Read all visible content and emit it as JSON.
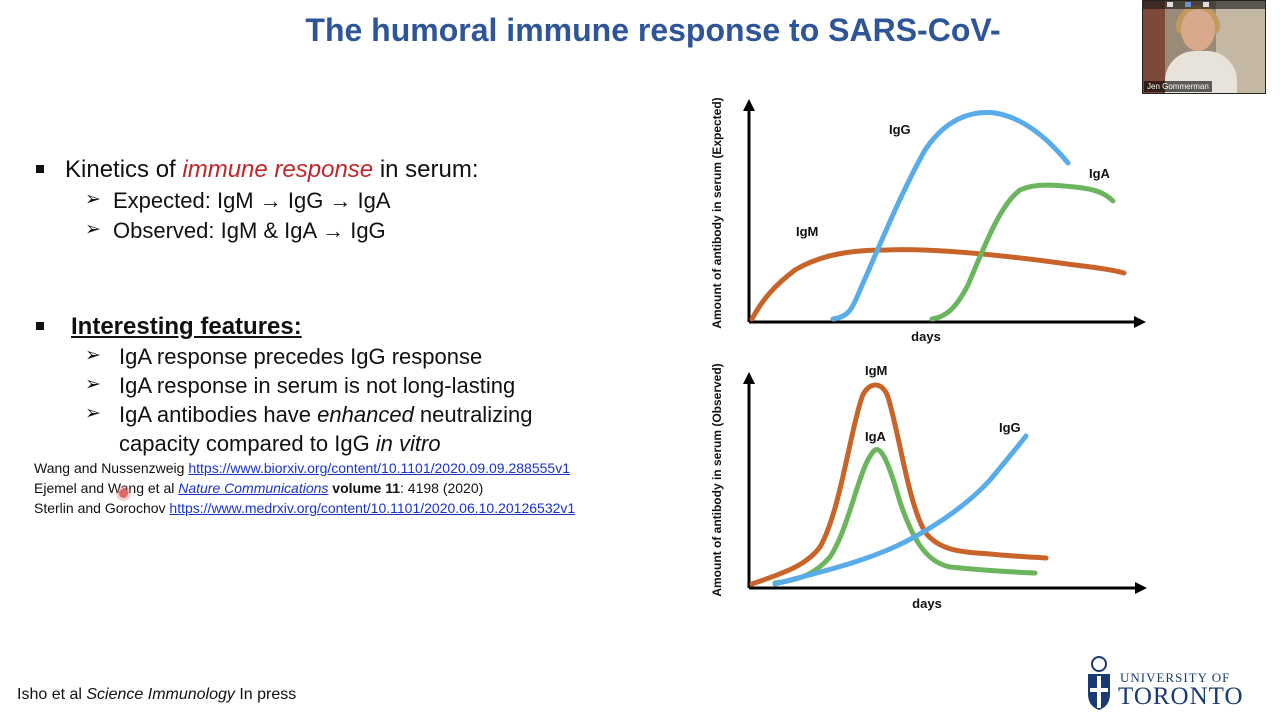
{
  "slide": {
    "title": "The humoral immune response to SARS-CoV-",
    "bullet1": {
      "pre": "Kinetics of ",
      "emph": "immune response",
      "post": " in serum:",
      "sub": [
        "Expected: IgM → IgG → IgA",
        "Observed: IgM & IgA → IgG"
      ]
    },
    "bullet2": {
      "heading": "Interesting features:",
      "sub1": "IgA response precedes IgG response",
      "sub2": "IgA response in serum is not long-lasting",
      "sub3_pre": "IgA antibodies have ",
      "sub3_emph": "enhanced",
      "sub3_post": " neutralizing",
      "sub3_line2_pre": "capacity compared to IgG ",
      "sub3_line2_emph": "in vitro"
    },
    "references": [
      {
        "authors": "Wang and Nussenzweig",
        "link": "https://www.biorxiv.org/content/10.1101/2020.09.09.288555v1"
      },
      {
        "authors": "Ejemel and Wang et al",
        "journal": "Nature Communications",
        "volume": "volume 11",
        "rest": ": 4198 (2020)"
      },
      {
        "authors": "Sterlin and Gorochov",
        "link": "https://www.medrxiv.org/content/10.1101/2020.06.10.20126532v1"
      }
    ],
    "citation": {
      "pre": "Isho et al ",
      "journal": "Science Immunology",
      "post": " In press"
    },
    "logo": {
      "line1": "UNIVERSITY OF",
      "line2": "TORONTO"
    }
  },
  "video": {
    "participant_name": "Jen Gommerman"
  },
  "colors": {
    "title": "#2e5597",
    "emphasis": "#c0272d",
    "link": "#1a33c8",
    "igm": "#c8642a",
    "igg": "#5aace8",
    "iga": "#6cb55e"
  },
  "chart_data": [
    {
      "type": "line",
      "ylabel": "Amount of antibody in serum (Expected)",
      "xlabel": "days",
      "series": [
        {
          "name": "IgM",
          "color": "#c8642a"
        },
        {
          "name": "IgG",
          "color": "#5aace8"
        },
        {
          "name": "IgA",
          "color": "#6cb55e"
        }
      ]
    },
    {
      "type": "line",
      "ylabel": "Amount of antibody in serum (Observed)",
      "xlabel": "days",
      "series": [
        {
          "name": "IgM",
          "color": "#c8642a"
        },
        {
          "name": "IgA",
          "color": "#6cb55e"
        },
        {
          "name": "IgG",
          "color": "#5aace8"
        }
      ]
    }
  ]
}
